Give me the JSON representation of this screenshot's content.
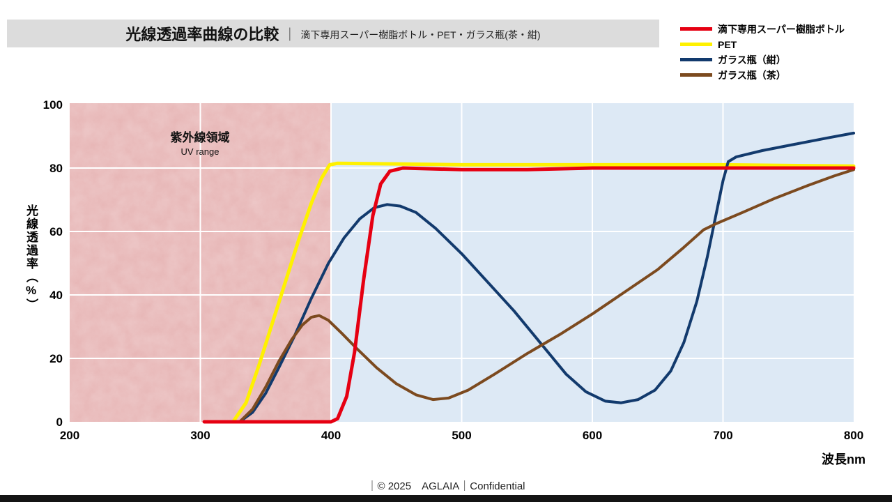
{
  "header": {
    "title": "光線透過率曲線の比較",
    "divider": "｜",
    "subtitle": "滴下専用スーパー樹脂ボトル・PET・ガラス瓶(茶・紺)"
  },
  "footer": {
    "text": "｜© 2025　AGLAIA｜Confidential"
  },
  "chart_data": {
    "type": "line",
    "title": "光線透過率曲線の比較",
    "xlabel": "波長nm",
    "ylabel": "光線透過率（%）",
    "xlim": [
      200,
      800
    ],
    "ylim": [
      0,
      100
    ],
    "x_ticks": [
      200,
      300,
      400,
      500,
      600,
      700,
      800
    ],
    "y_ticks": [
      0,
      20,
      40,
      60,
      80,
      100
    ],
    "grid_x": [
      300,
      400,
      500,
      600,
      700
    ],
    "grid_y": [
      20,
      40,
      60,
      80
    ],
    "grid_on": true,
    "grid_color": "#ffffff",
    "plot_bg": "#dde9f5",
    "legend_position": "top-right",
    "uv_region": {
      "x_start": 200,
      "x_end": 400,
      "color": "#e7b5b5",
      "label_jp": "紫外線領域",
      "label_en": "UV range"
    },
    "series": [
      {
        "name": "滴下専用スーパー樹脂ボトル",
        "color": "#e60012",
        "stroke_width": 5,
        "points": [
          [
            303,
            0
          ],
          [
            400,
            0
          ],
          [
            405,
            1
          ],
          [
            412,
            8
          ],
          [
            418,
            22
          ],
          [
            425,
            45
          ],
          [
            432,
            65
          ],
          [
            438,
            75
          ],
          [
            445,
            79
          ],
          [
            455,
            80
          ],
          [
            500,
            79.5
          ],
          [
            550,
            79.5
          ],
          [
            600,
            80
          ],
          [
            650,
            80
          ],
          [
            700,
            80
          ],
          [
            750,
            80
          ],
          [
            800,
            80
          ]
        ]
      },
      {
        "name": "PET",
        "color": "#fff100",
        "stroke_width": 5,
        "points": [
          [
            308,
            0
          ],
          [
            325,
            0
          ],
          [
            335,
            6
          ],
          [
            345,
            18
          ],
          [
            355,
            31
          ],
          [
            365,
            44
          ],
          [
            375,
            57
          ],
          [
            385,
            69
          ],
          [
            393,
            77
          ],
          [
            399,
            81
          ],
          [
            405,
            81.5
          ],
          [
            450,
            81.3
          ],
          [
            500,
            81
          ],
          [
            600,
            81
          ],
          [
            700,
            81
          ],
          [
            800,
            80.6
          ]
        ]
      },
      {
        "name": "ガラス瓶（紺）",
        "color": "#123a6d",
        "stroke_width": 4,
        "points": [
          [
            330,
            0
          ],
          [
            340,
            3
          ],
          [
            350,
            9
          ],
          [
            360,
            17
          ],
          [
            372,
            27
          ],
          [
            385,
            39
          ],
          [
            398,
            50
          ],
          [
            410,
            58
          ],
          [
            422,
            64
          ],
          [
            433,
            67.5
          ],
          [
            443,
            68.5
          ],
          [
            453,
            68
          ],
          [
            465,
            66
          ],
          [
            480,
            61
          ],
          [
            500,
            53
          ],
          [
            520,
            44
          ],
          [
            540,
            35
          ],
          [
            560,
            25
          ],
          [
            580,
            15
          ],
          [
            595,
            9.5
          ],
          [
            610,
            6.5
          ],
          [
            622,
            6
          ],
          [
            635,
            7
          ],
          [
            648,
            10
          ],
          [
            660,
            16
          ],
          [
            670,
            25
          ],
          [
            680,
            38
          ],
          [
            688,
            52
          ],
          [
            695,
            66
          ],
          [
            700,
            76
          ],
          [
            704,
            82
          ],
          [
            710,
            83.5
          ],
          [
            730,
            85.5
          ],
          [
            755,
            87.5
          ],
          [
            780,
            89.5
          ],
          [
            800,
            91
          ]
        ]
      },
      {
        "name": "ガラス瓶（茶）",
        "color": "#7c4a1f",
        "stroke_width": 4,
        "points": [
          [
            330,
            0
          ],
          [
            340,
            4
          ],
          [
            350,
            11
          ],
          [
            360,
            19
          ],
          [
            370,
            26
          ],
          [
            378,
            30.5
          ],
          [
            385,
            33
          ],
          [
            391,
            33.5
          ],
          [
            398,
            32
          ],
          [
            408,
            28
          ],
          [
            420,
            23
          ],
          [
            435,
            17
          ],
          [
            450,
            12
          ],
          [
            465,
            8.5
          ],
          [
            478,
            7
          ],
          [
            490,
            7.5
          ],
          [
            505,
            10
          ],
          [
            525,
            15
          ],
          [
            550,
            21.5
          ],
          [
            575,
            27.5
          ],
          [
            600,
            34
          ],
          [
            625,
            41
          ],
          [
            650,
            48
          ],
          [
            670,
            55
          ],
          [
            685,
            60.5
          ],
          [
            695,
            62.5
          ],
          [
            715,
            66
          ],
          [
            740,
            70.5
          ],
          [
            765,
            74.5
          ],
          [
            785,
            77.5
          ],
          [
            800,
            79.5
          ]
        ]
      }
    ]
  }
}
